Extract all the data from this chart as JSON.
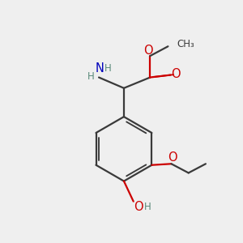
{
  "background_color": "#efefef",
  "bond_color": "#3a3a3a",
  "oxygen_color": "#cc0000",
  "nitrogen_color": "#0000bb",
  "atom_color": "#3a3a3a",
  "line_width": 1.6,
  "figsize": [
    3.0,
    3.0
  ],
  "dpi": 100,
  "xlim": [
    0,
    10
  ],
  "ylim": [
    0,
    10
  ]
}
